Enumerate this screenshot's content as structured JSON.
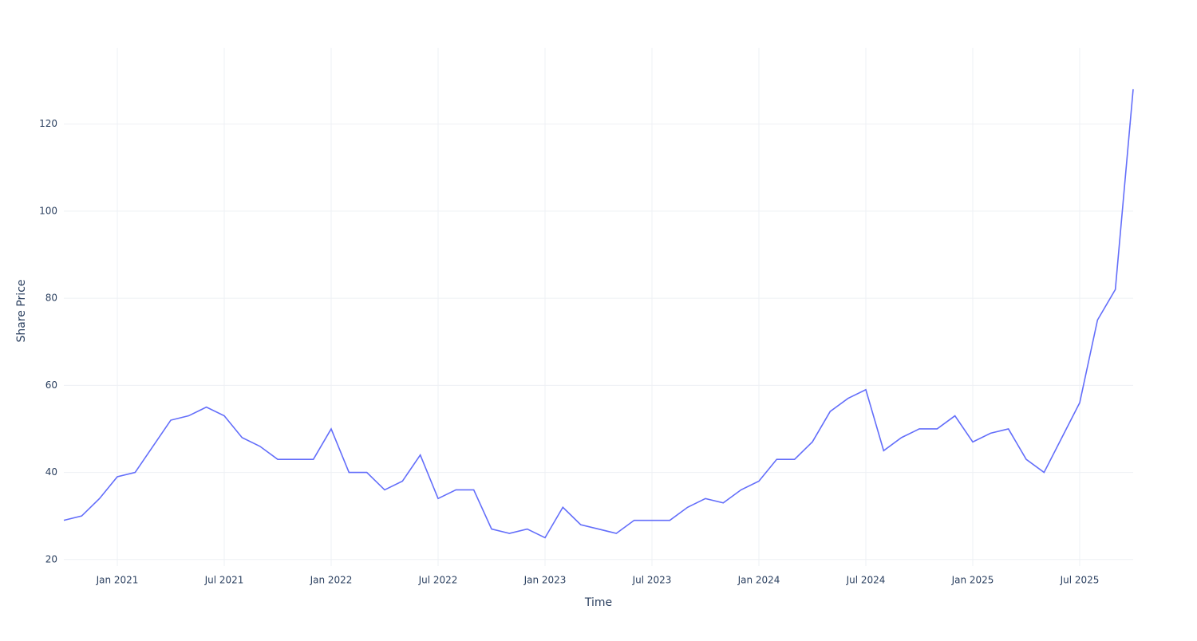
{
  "chart_data": {
    "type": "line",
    "x_label": "Time",
    "y_label": "Share Price",
    "x": [
      "2020-10",
      "2020-11",
      "2020-12",
      "2021-01",
      "2021-02",
      "2021-03",
      "2021-04",
      "2021-05",
      "2021-06",
      "2021-07",
      "2021-08",
      "2021-09",
      "2021-10",
      "2021-11",
      "2021-12",
      "2022-01",
      "2022-02",
      "2022-03",
      "2022-04",
      "2022-05",
      "2022-06",
      "2022-07",
      "2022-08",
      "2022-09",
      "2022-10",
      "2022-11",
      "2022-12",
      "2023-01",
      "2023-02",
      "2023-03",
      "2023-04",
      "2023-05",
      "2023-06",
      "2023-07",
      "2023-08",
      "2023-09",
      "2023-10",
      "2023-11",
      "2023-12",
      "2024-01",
      "2024-02",
      "2024-03",
      "2024-04",
      "2024-05",
      "2024-06",
      "2024-07",
      "2024-08",
      "2024-09",
      "2024-10",
      "2024-11",
      "2024-12",
      "2025-01",
      "2025-02",
      "2025-03",
      "2025-04",
      "2025-05",
      "2025-06",
      "2025-07",
      "2025-08",
      "2025-09",
      "2025-10"
    ],
    "series": [
      {
        "name": "Share Price",
        "color": "#636efa",
        "values": [
          29,
          30,
          34,
          39,
          40,
          46,
          52,
          53,
          55,
          53,
          48,
          46,
          43,
          43,
          43,
          50,
          40,
          40,
          36,
          38,
          44,
          34,
          36,
          36,
          27,
          26,
          27,
          25,
          32,
          28,
          27,
          26,
          29,
          29,
          29,
          32,
          34,
          33,
          36,
          38,
          43,
          43,
          47,
          54,
          57,
          59,
          45,
          48,
          50,
          50,
          53,
          47,
          49,
          50,
          43,
          40,
          48,
          56,
          75,
          82,
          128
        ]
      }
    ],
    "xlim": [
      "2020-10",
      "2025-10"
    ],
    "xticks": [
      {
        "value": "2021-01",
        "label": "Jan 2021"
      },
      {
        "value": "2021-07",
        "label": "Jul 2021"
      },
      {
        "value": "2022-01",
        "label": "Jan 2022"
      },
      {
        "value": "2022-07",
        "label": "Jul 2022"
      },
      {
        "value": "2023-01",
        "label": "Jan 2023"
      },
      {
        "value": "2023-07",
        "label": "Jul 2023"
      },
      {
        "value": "2024-01",
        "label": "Jan 2024"
      },
      {
        "value": "2024-07",
        "label": "Jul 2024"
      },
      {
        "value": "2025-01",
        "label": "Jan 2025"
      },
      {
        "value": "2025-07",
        "label": "Jul 2025"
      }
    ],
    "ylim": [
      18.5,
      137.5
    ],
    "yticks": [
      20,
      40,
      60,
      80,
      100,
      120
    ],
    "grid": true
  }
}
